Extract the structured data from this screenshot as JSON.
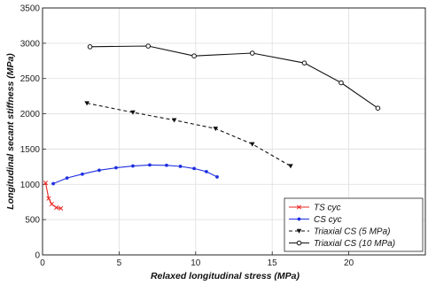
{
  "chart_data": {
    "type": "line",
    "xlabel": "Relaxed longitudinal stress (MPa)",
    "ylabel": "Longitudinal secant stiffness (MPa)",
    "xlim": [
      0,
      25
    ],
    "ylim": [
      0,
      3500
    ],
    "x_ticks": [
      "0",
      "5",
      "10",
      "15",
      "20"
    ],
    "x_tick_values": [
      0,
      5,
      10,
      15,
      20
    ],
    "y_ticks": [
      "0",
      "500",
      "1000",
      "1500",
      "2000",
      "2500",
      "3000",
      "3500"
    ],
    "y_tick_values": [
      0,
      500,
      1000,
      1500,
      2000,
      2500,
      3000,
      3500
    ],
    "grid": true,
    "legend_position": "bottom-right",
    "series": [
      {
        "name": "TS cyc",
        "color": "#e8251f",
        "line": "solid",
        "marker": "x",
        "x": [
          0.2,
          0.4,
          0.6,
          0.9,
          1.2
        ],
        "y": [
          1020,
          800,
          720,
          670,
          660
        ]
      },
      {
        "name": "CS cyc",
        "color": "#1f2fe0",
        "line": "solid",
        "marker": "dot",
        "x": [
          0.7,
          1.6,
          2.6,
          3.7,
          4.8,
          5.9,
          7.0,
          8.1,
          9.0,
          9.9,
          10.7,
          11.4
        ],
        "y": [
          1010,
          1090,
          1145,
          1200,
          1235,
          1260,
          1275,
          1270,
          1255,
          1225,
          1180,
          1105
        ]
      },
      {
        "name": "Triaxial CS (5 MPa)",
        "color": "#111111",
        "line": "dashed",
        "marker": "triangle-down",
        "x": [
          2.9,
          5.9,
          8.6,
          11.3,
          13.7,
          16.2
        ],
        "y": [
          2150,
          2020,
          1910,
          1790,
          1570,
          1260
        ]
      },
      {
        "name": "Triaxial CS (10 MPa)",
        "color": "#111111",
        "line": "solid",
        "marker": "circle",
        "x": [
          3.1,
          6.9,
          9.9,
          13.7,
          17.1,
          19.5,
          21.9
        ],
        "y": [
          2950,
          2960,
          2820,
          2860,
          2720,
          2440,
          2080
        ]
      }
    ]
  }
}
